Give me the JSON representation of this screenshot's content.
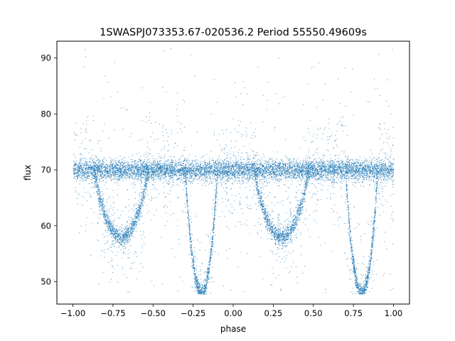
{
  "chart_data": {
    "type": "scatter",
    "title": "1SWASPJ073353.67-020536.2 Period 55550.49609s",
    "xlabel": "phase",
    "ylabel": "flux",
    "xlim": [
      -1.1,
      1.1
    ],
    "ylim": [
      46,
      93
    ],
    "xticks": [
      -1.0,
      -0.75,
      -0.5,
      -0.25,
      0.0,
      0.25,
      0.5,
      0.75,
      1.0
    ],
    "xtick_labels": [
      "−1.00",
      "−0.75",
      "−0.50",
      "−0.25",
      "0.00",
      "0.25",
      "0.50",
      "0.75",
      "1.00"
    ],
    "yticks": [
      50,
      60,
      70,
      80,
      90
    ],
    "ytick_labels": [
      "50",
      "60",
      "70",
      "80",
      "90"
    ],
    "grid": false,
    "point_color": "#1f77b4",
    "baseline_flux": 70,
    "phase_range": [
      -1.0,
      1.0
    ],
    "dips": [
      {
        "center_phase": -0.7,
        "min_flux": 58,
        "half_width_phase": 0.17
      },
      {
        "center_phase": 0.3,
        "min_flux": 58,
        "half_width_phase": 0.17
      },
      {
        "center_phase": -0.2,
        "min_flux": 48,
        "half_width_phase": 0.1
      },
      {
        "center_phase": 0.8,
        "min_flux": 48,
        "half_width_phase": 0.1
      }
    ]
  }
}
